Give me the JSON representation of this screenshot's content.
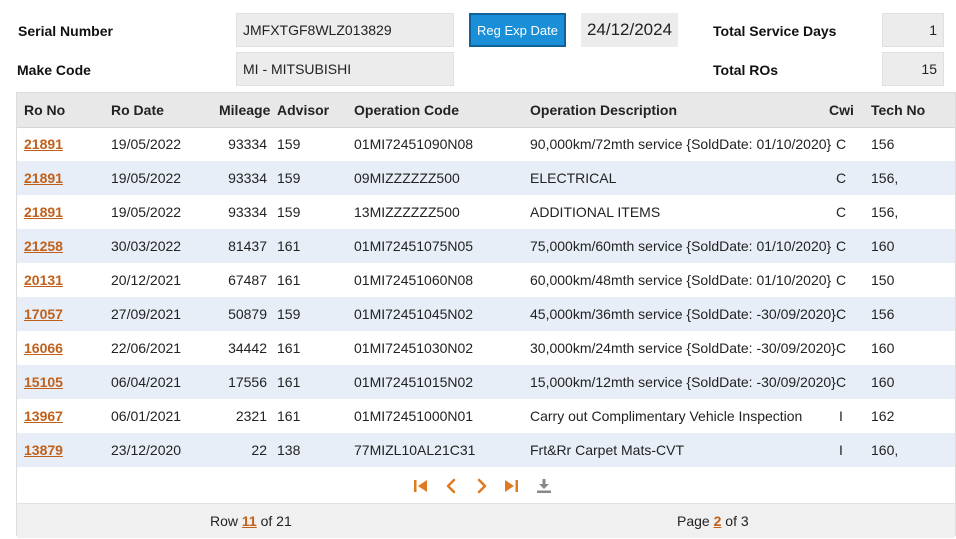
{
  "header": {
    "serial_label": "Serial Number",
    "serial_value": "JMFXTGF8WLZ013829",
    "make_label": "Make Code",
    "make_value": "MI - MITSUBISHI",
    "reg_button": "Reg Exp Date",
    "reg_date": "24/12/2024",
    "service_days_label": "Total Service Days",
    "service_days_value": "1",
    "ros_label": "Total ROs",
    "ros_value": "15"
  },
  "table": {
    "columns": [
      "Ro No",
      "Ro Date",
      "Mileage",
      "Advisor",
      "Operation Code",
      "Operation Description",
      "Cwi",
      "Tech No"
    ],
    "rows": [
      {
        "ro_no": "21891",
        "ro_date": "19/05/2022",
        "mileage": "93334",
        "advisor": "159",
        "op_code": "01MI72451090N08",
        "op_desc": "90,000km/72mth service {SoldDate: 01/10/2020}",
        "cwi": "C",
        "tech": "156"
      },
      {
        "ro_no": "21891",
        "ro_date": "19/05/2022",
        "mileage": "93334",
        "advisor": "159",
        "op_code": "09MIZZZZZZ500",
        "op_desc": "ELECTRICAL",
        "cwi": "C",
        "tech": "156,"
      },
      {
        "ro_no": "21891",
        "ro_date": "19/05/2022",
        "mileage": "93334",
        "advisor": "159",
        "op_code": "13MIZZZZZZ500",
        "op_desc": "ADDITIONAL ITEMS",
        "cwi": "C",
        "tech": "156,"
      },
      {
        "ro_no": "21258",
        "ro_date": "30/03/2022",
        "mileage": "81437",
        "advisor": "161",
        "op_code": "01MI72451075N05",
        "op_desc": "75,000km/60mth service {SoldDate: 01/10/2020}",
        "cwi": "C",
        "tech": "160"
      },
      {
        "ro_no": "20131",
        "ro_date": "20/12/2021",
        "mileage": "67487",
        "advisor": "161",
        "op_code": "01MI72451060N08",
        "op_desc": "60,000km/48mth service {SoldDate: 01/10/2020}",
        "cwi": "C",
        "tech": "150"
      },
      {
        "ro_no": "17057",
        "ro_date": "27/09/2021",
        "mileage": "50879",
        "advisor": "159",
        "op_code": "01MI72451045N02",
        "op_desc": "45,000km/36mth service {SoldDate: -30/09/2020}",
        "cwi": "C",
        "tech": "156"
      },
      {
        "ro_no": "16066",
        "ro_date": "22/06/2021",
        "mileage": "34442",
        "advisor": "161",
        "op_code": "01MI72451030N02",
        "op_desc": "30,000km/24mth service {SoldDate: -30/09/2020}",
        "cwi": "C",
        "tech": "160"
      },
      {
        "ro_no": "15105",
        "ro_date": "06/04/2021",
        "mileage": "17556",
        "advisor": "161",
        "op_code": "01MI72451015N02",
        "op_desc": "15,000km/12mth service {SoldDate: -30/09/2020}",
        "cwi": "C",
        "tech": "160"
      },
      {
        "ro_no": "13967",
        "ro_date": "06/01/2021",
        "mileage": "2321",
        "advisor": "161",
        "op_code": "01MI72451000N01",
        "op_desc": "Carry out Complimentary Vehicle Inspection",
        "cwi": "I",
        "tech": "162"
      },
      {
        "ro_no": "13879",
        "ro_date": "23/12/2020",
        "mileage": "22",
        "advisor": "138",
        "op_code": "77MIZL10AL21C31",
        "op_desc": "Frt&Rr Carpet Mats-CVT",
        "cwi": "I",
        "tech": "160,"
      }
    ]
  },
  "pager": {
    "icons": [
      "first-page-icon",
      "prev-page-icon",
      "next-page-icon",
      "last-page-icon",
      "download-icon"
    ],
    "accent": "#e07a20"
  },
  "footer": {
    "row_label": "Row",
    "row_value": "11",
    "row_of": "of 21",
    "page_label": "Page",
    "page_value": "2",
    "page_of": "of 3"
  }
}
